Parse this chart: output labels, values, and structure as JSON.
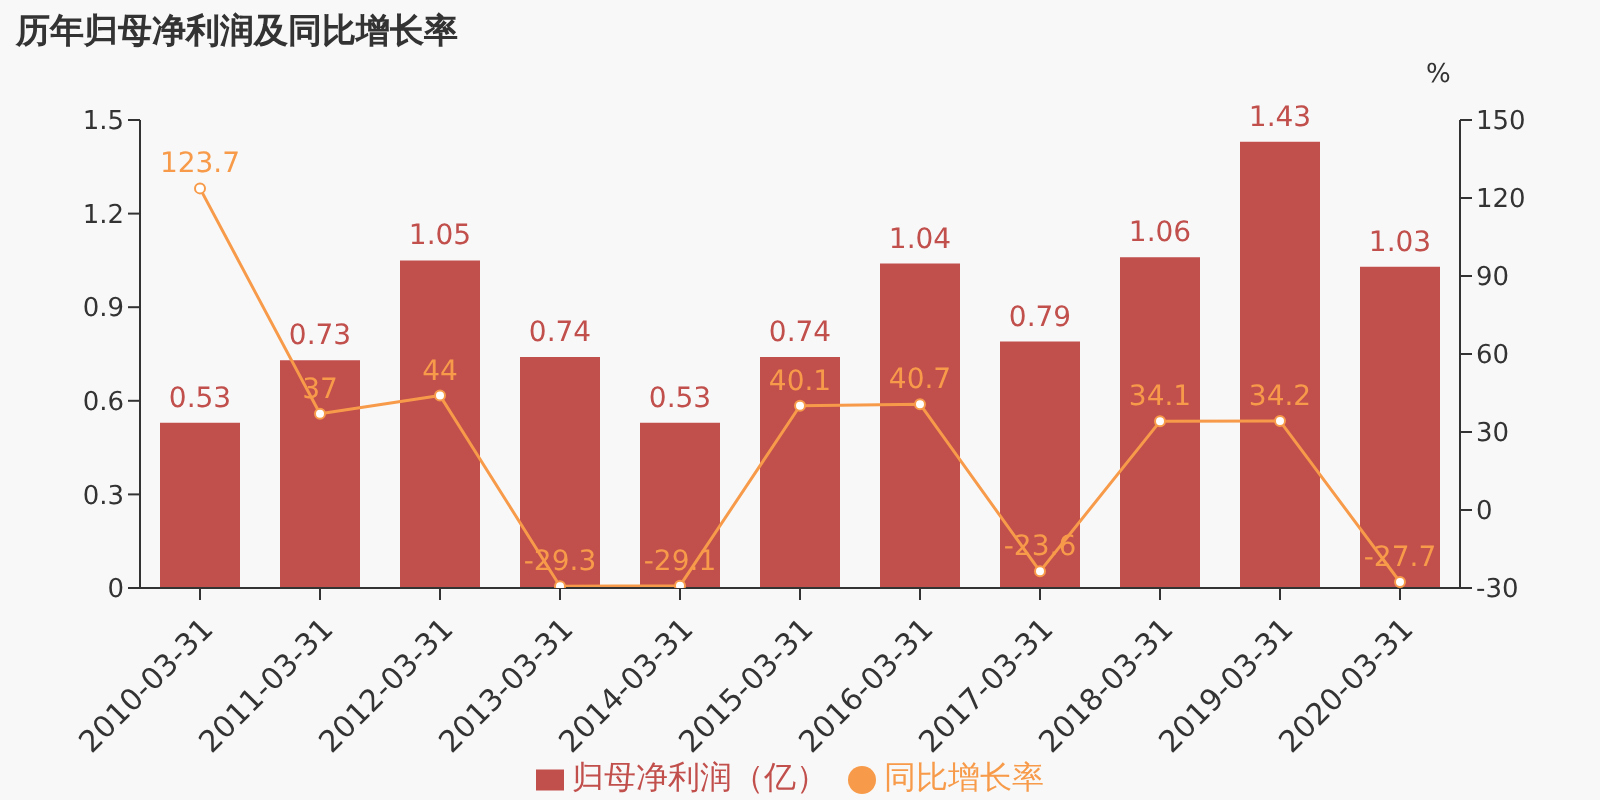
{
  "chart_data": {
    "type": "bar",
    "title": "历年归母净利润及同比增长率",
    "y2label": "%",
    "categories": [
      "2010-03-31",
      "2011-03-31",
      "2012-03-31",
      "2013-03-31",
      "2014-03-31",
      "2015-03-31",
      "2016-03-31",
      "2017-03-31",
      "2018-03-31",
      "2019-03-31",
      "2020-03-31"
    ],
    "series": [
      {
        "name": "归母净利润（亿）",
        "color": "#c14f4c",
        "values": [
          0.53,
          0.73,
          1.05,
          0.74,
          0.53,
          0.74,
          1.04,
          0.79,
          1.06,
          1.43,
          1.03
        ]
      },
      {
        "name": "同比增长率",
        "type": "line",
        "axis": "y2",
        "color": "#f79b4a",
        "values": [
          123.7,
          37,
          44,
          -29.3,
          -29.1,
          40.1,
          40.7,
          -23.6,
          34.1,
          34.2,
          -27.7
        ]
      }
    ],
    "ylim": [
      0,
      1.5
    ],
    "yticks": [
      0,
      0.3,
      0.6,
      0.9,
      1.2,
      1.5
    ],
    "y2lim": [
      -30,
      150
    ],
    "y2ticks": [
      -30,
      0,
      30,
      60,
      90,
      120,
      150
    ],
    "marker": "circle",
    "legend": "bottom",
    "data_labels": true
  }
}
